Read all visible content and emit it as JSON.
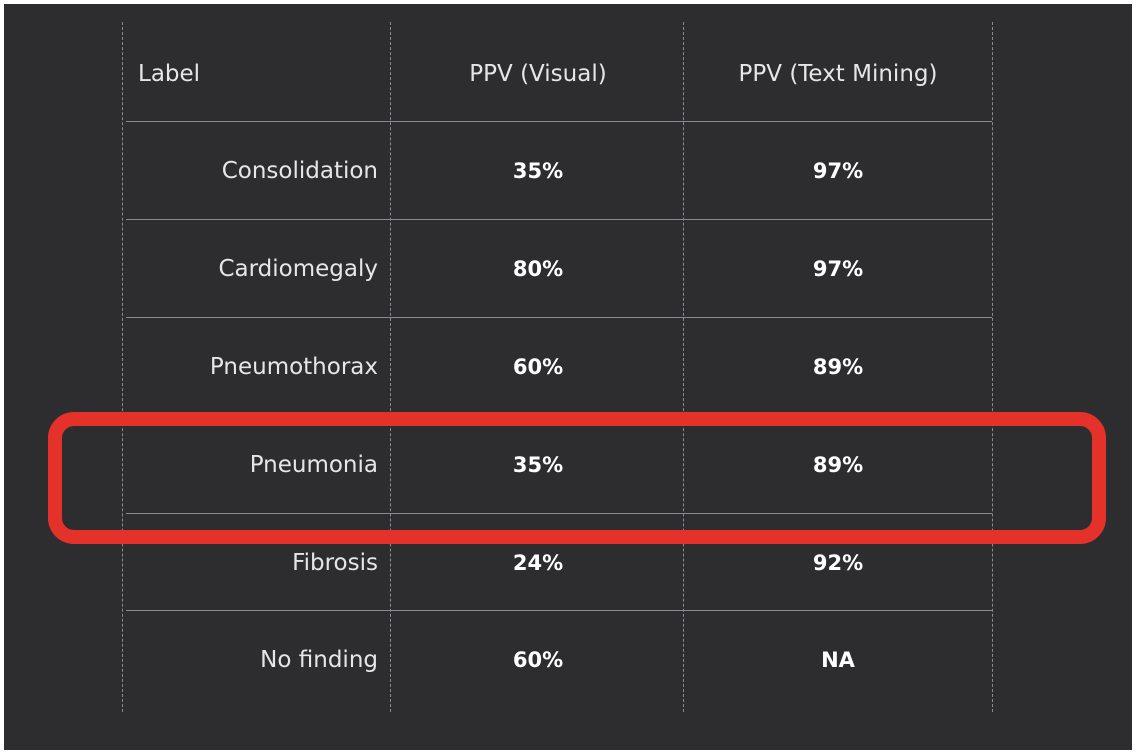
{
  "table": {
    "headers": {
      "label": "Label",
      "visual": "PPV (Visual)",
      "text_mining": "PPV (Text Mining)"
    },
    "rows": [
      {
        "label": "Consolidation",
        "visual": "35%",
        "text_mining": "97%"
      },
      {
        "label": "Cardiomegaly",
        "visual": "80%",
        "text_mining": "97%"
      },
      {
        "label": "Pneumothorax",
        "visual": "60%",
        "text_mining": "89%"
      },
      {
        "label": "Pneumonia",
        "visual": "35%",
        "text_mining": "89%"
      },
      {
        "label": "Fibrosis",
        "visual": "24%",
        "text_mining": "92%"
      },
      {
        "label": "No finding",
        "visual": "60%",
        "text_mining": "NA"
      }
    ],
    "highlighted_row": "Pneumonia"
  },
  "colors": {
    "background": "#2d2d30",
    "highlight": "#e4322b",
    "text": "#ffffff"
  }
}
